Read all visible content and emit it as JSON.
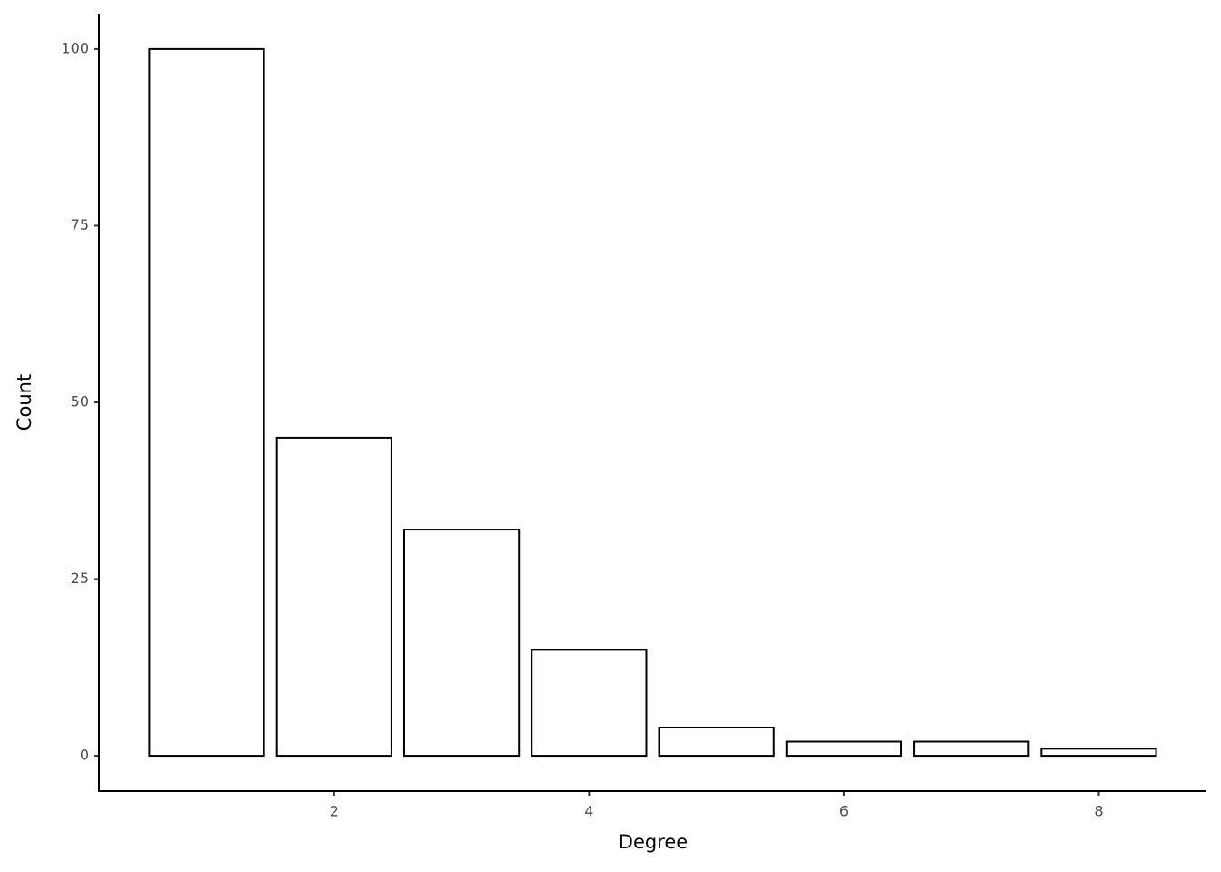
{
  "chart_data": {
    "type": "bar",
    "x_label": "Degree",
    "y_label": "Count",
    "x": [
      1,
      2,
      3,
      4,
      5,
      6,
      7,
      8
    ],
    "values": [
      100,
      45,
      32,
      15,
      4,
      2,
      2,
      1
    ],
    "fill": "#ffffff",
    "color": "#000000",
    "xlim": [
      0.155,
      8.845
    ],
    "xticks": [
      2,
      4,
      6,
      8
    ],
    "ylim": [
      -5,
      105
    ],
    "yticks": [
      0,
      25,
      50,
      75,
      100
    ],
    "grid": false
  }
}
